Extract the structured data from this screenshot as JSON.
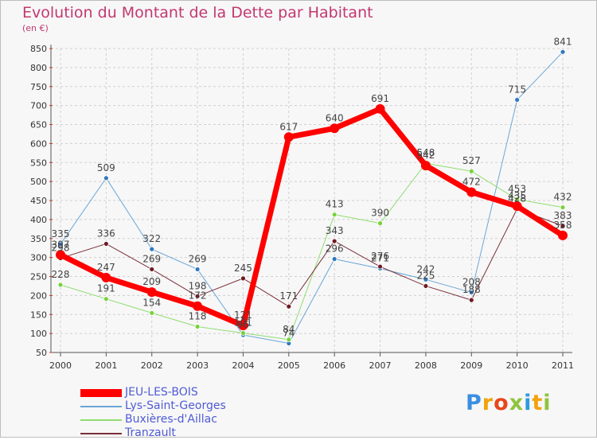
{
  "chart_data": {
    "type": "line",
    "title": "Evolution du Montant de la Dette par Habitant",
    "subtitle": "(en €)",
    "xlabel": "",
    "ylabel": "",
    "categories": [
      "2000",
      "2001",
      "2002",
      "2003",
      "2004",
      "2005",
      "2006",
      "2007",
      "2008",
      "2009",
      "2010",
      "2011"
    ],
    "ylim": [
      50,
      850
    ],
    "yticks": [
      50,
      100,
      150,
      200,
      250,
      300,
      350,
      400,
      450,
      500,
      550,
      600,
      650,
      700,
      750,
      800,
      850
    ],
    "grid": true,
    "legend_position": "bottom-left",
    "series": [
      {
        "name": "JEU-LES-BOIS",
        "color": "#ff0000",
        "marker": "#ff0000",
        "width": 7,
        "values": [
          307,
          247,
          209,
          172,
          121,
          617,
          640,
          691,
          542,
          472,
          435,
          358
        ]
      },
      {
        "name": "Lys-Saint-Georges",
        "color": "#6aa6d6",
        "marker": "#2f78bf",
        "width": 1,
        "values": [
          335,
          509,
          322,
          269,
          96,
          74,
          296,
          271,
          242,
          208,
          715,
          841
        ]
      },
      {
        "name": "Buxières-d'Aillac",
        "color": "#90dd70",
        "marker": "#78d23c",
        "width": 1,
        "values": [
          228,
          191,
          154,
          118,
          101,
          84,
          413,
          390,
          548,
          527,
          453,
          432
        ]
      },
      {
        "name": "Tranzault",
        "color": "#7a2f39",
        "marker": "#6e1a24",
        "width": 1,
        "values": [
          298,
          336,
          269,
          198,
          245,
          171,
          343,
          276,
          225,
          188,
          428,
          383
        ]
      }
    ],
    "labels": [
      [
        307,
        247,
        209,
        172,
        121,
        617,
        640,
        691,
        542,
        472,
        435,
        358
      ],
      [
        335,
        509,
        322,
        269,
        96,
        74,
        296,
        271,
        242,
        208,
        715,
        841
      ],
      [
        228,
        191,
        154,
        118,
        101,
        84,
        413,
        390,
        548,
        527,
        453,
        432
      ],
      [
        298,
        336,
        269,
        198,
        245,
        171,
        343,
        276,
        225,
        188,
        428,
        383
      ]
    ]
  },
  "brand": {
    "letters": [
      "P",
      "r",
      "o",
      "x",
      "i",
      "t",
      "i"
    ],
    "colors": [
      "#3a8fe0",
      "#f2a20c",
      "#e8461b",
      "#8fc43d",
      "#2d9be0",
      "#f2a20c",
      "#8fc43d"
    ]
  }
}
